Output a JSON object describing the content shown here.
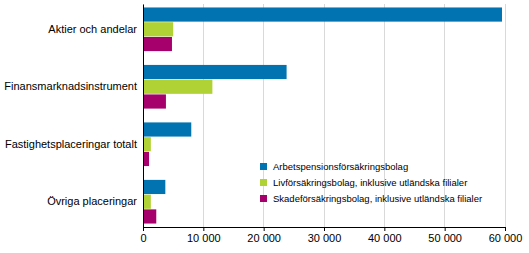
{
  "chart_data": {
    "type": "bar",
    "orientation": "horizontal",
    "grid": true,
    "legend": "lower right",
    "categories": [
      "Aktier och andelar",
      "Finansmarknadsinstrument",
      "Fastighetsplaceringar totalt",
      "Övriga placeringar"
    ],
    "series": [
      {
        "name": "Arbetspensionsförsäkringsbolag",
        "color": "#0073b0",
        "values": [
          59500,
          23800,
          8000,
          3700
        ]
      },
      {
        "name": "Livförsäkringsbolag, inklusive utländska filialer",
        "color": "#b1d235",
        "values": [
          5000,
          11500,
          1300,
          1300
        ]
      },
      {
        "name": "Skadeförsäkringsbolag,  inklusive utländska filialer",
        "color": "#a5006b",
        "values": [
          4800,
          3800,
          1000,
          2200
        ]
      }
    ],
    "xlim": [
      0,
      60000
    ],
    "xticks": [
      0,
      {
        "value": 10000,
        "label": "10 000"
      },
      {
        "value": 20000,
        "label": "20 000"
      },
      {
        "value": 30000,
        "label": "30 000"
      },
      {
        "value": 40000,
        "label": "40 000"
      },
      {
        "value": 50000,
        "label": "50 000"
      },
      {
        "value": 60000,
        "label": "60 000"
      }
    ]
  }
}
